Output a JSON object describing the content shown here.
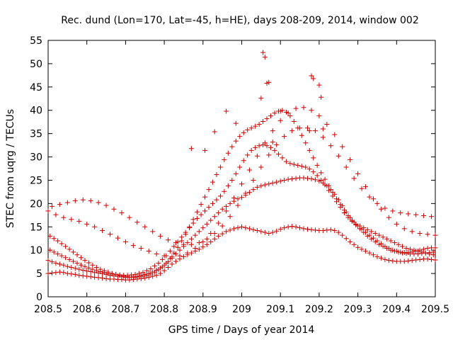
{
  "chart_data": {
    "type": "scatter",
    "title": "Rec. dund (Lon=170, Lat=-45, h=HE), days 208-209, 2014, window 002",
    "xlabel": "GPS time / Days of year 2014",
    "ylabel": "STEC from uqrg / TECUs",
    "xlim": [
      208.5,
      209.5
    ],
    "ylim": [
      0,
      55
    ],
    "xticks": [
      208.5,
      208.6,
      208.7,
      208.8,
      208.9,
      209,
      209.1,
      209.2,
      209.3,
      209.4,
      209.5
    ],
    "xtick_labels": [
      "208.5",
      "208.6",
      "208.7",
      "208.8",
      "208.9",
      "209",
      "209.1",
      "209.2",
      "209.3",
      "209.4",
      "209.5"
    ],
    "yticks": [
      0,
      5,
      10,
      15,
      20,
      25,
      30,
      35,
      40,
      45,
      50,
      55
    ],
    "ytick_labels": [
      "0",
      "5",
      "10",
      "15",
      "20",
      "25",
      "30",
      "35",
      "40",
      "45",
      "50",
      "55"
    ],
    "grid": false,
    "marker": "+",
    "series": [
      {
        "name": "STEC",
        "color": "#cc0000",
        "x": [
          208.5,
          208.51,
          208.52,
          208.53,
          208.54,
          208.55,
          208.56,
          208.57,
          208.58,
          208.59,
          208.6,
          208.61,
          208.62,
          208.63,
          208.64,
          208.65,
          208.66,
          208.67,
          208.68,
          208.69,
          208.7,
          208.71,
          208.72,
          208.73,
          208.74,
          208.75,
          208.76,
          208.77,
          208.78,
          208.79,
          208.8,
          208.81,
          208.82,
          208.83,
          208.84,
          208.85,
          208.86,
          208.87,
          208.88,
          208.89,
          208.9,
          208.91,
          208.92,
          208.93,
          208.94,
          208.95,
          208.96,
          208.97,
          208.98,
          208.99,
          209.0,
          209.01,
          209.02,
          209.03,
          209.04,
          209.05,
          209.06,
          209.07,
          209.08,
          209.09,
          209.1,
          209.11,
          209.12,
          209.13,
          209.14,
          209.15,
          209.16,
          209.17,
          209.18,
          209.19,
          209.2,
          209.21,
          209.22,
          209.23,
          209.24,
          209.25,
          209.26,
          209.27,
          209.28,
          209.29,
          209.3,
          209.31,
          209.32,
          209.33,
          209.34,
          209.35,
          209.36,
          209.37,
          209.38,
          209.39,
          209.4,
          209.41,
          209.42,
          209.43,
          209.44,
          209.45,
          209.46,
          209.47,
          209.48,
          209.49,
          209.5,
          208.5,
          208.51,
          208.52,
          208.53,
          208.54,
          208.55,
          208.56,
          208.57,
          208.58,
          208.59,
          208.6,
          208.61,
          208.62,
          208.63,
          208.64,
          208.65,
          208.66,
          208.67,
          208.68,
          208.69,
          208.7,
          208.71,
          208.72,
          208.73,
          208.74,
          208.75,
          208.76,
          208.77,
          208.78,
          208.79,
          208.8,
          208.81,
          208.82,
          208.83,
          208.84,
          208.85,
          208.86,
          208.87,
          208.88,
          208.89,
          208.9,
          208.91,
          208.92,
          208.93,
          208.94,
          208.95,
          208.96,
          208.97,
          208.98,
          208.99,
          209.0,
          209.01,
          209.02,
          209.03,
          209.04,
          209.05,
          209.06,
          209.07,
          209.08,
          209.09,
          209.1,
          209.11,
          209.12,
          209.13,
          209.14,
          209.15,
          209.16,
          209.17,
          209.18,
          209.19,
          209.2,
          209.21,
          209.22,
          209.23,
          209.24,
          209.25,
          209.26,
          209.27,
          209.28,
          209.29,
          209.3,
          209.31,
          209.32,
          209.33,
          209.34,
          209.35,
          209.36,
          209.37,
          209.38,
          209.39,
          209.4,
          209.41,
          209.42,
          209.43,
          209.44,
          209.45,
          209.46,
          209.47,
          209.48,
          209.49,
          209.5,
          208.505,
          208.515,
          208.525,
          208.535,
          208.545,
          208.555,
          208.565,
          208.575,
          208.585,
          208.595,
          208.605,
          208.615,
          208.625,
          208.635,
          208.645,
          208.655,
          208.665,
          208.675,
          208.685,
          208.695,
          208.705,
          208.715,
          208.725,
          208.735,
          208.745,
          208.755,
          208.765,
          208.775,
          208.785,
          208.795,
          208.805,
          208.815,
          208.825,
          208.835,
          208.845,
          208.855,
          208.865,
          208.875,
          208.885,
          208.895,
          208.905,
          208.915,
          208.925,
          208.935,
          208.945,
          208.955,
          208.965,
          208.975,
          208.985,
          208.995,
          209.005,
          209.015,
          209.025,
          209.035,
          209.045,
          209.055,
          209.065,
          209.075,
          209.085,
          209.095,
          209.105,
          209.115,
          209.125,
          209.135,
          209.145,
          209.155,
          209.165,
          209.175,
          209.185,
          209.195,
          209.205,
          209.215,
          209.225,
          209.235,
          209.245,
          209.255,
          209.265,
          209.275,
          209.285,
          209.295,
          209.305,
          209.315,
          209.325,
          209.335,
          209.345,
          209.355,
          209.365,
          209.375,
          209.385,
          209.395,
          209.405,
          209.415,
          209.425,
          209.435,
          209.445,
          209.455,
          209.465,
          209.475,
          209.485,
          209.495,
          208.505,
          208.515,
          208.525,
          208.535,
          208.545,
          208.555,
          208.565,
          208.575,
          208.585,
          208.595,
          208.605,
          208.615,
          208.625,
          208.635,
          208.645,
          208.655,
          208.665,
          208.675,
          208.685,
          208.695,
          208.705,
          208.715,
          208.725,
          208.735,
          208.745,
          208.755,
          208.765,
          208.775,
          208.785,
          208.795,
          208.805,
          208.815,
          208.825,
          208.835,
          208.845,
          208.855,
          208.865,
          208.875,
          208.885,
          208.895,
          208.905,
          208.915,
          208.925,
          208.935,
          208.945,
          208.955,
          208.965,
          208.975,
          208.985,
          208.995,
          209.005,
          209.015,
          209.025,
          209.035,
          209.045,
          209.055,
          209.065,
          209.075,
          209.085,
          209.095,
          209.105,
          209.115,
          209.125,
          209.135,
          209.145,
          209.155,
          209.165,
          209.175,
          209.185,
          209.195,
          209.205,
          209.215,
          209.225,
          209.235,
          209.245,
          209.255,
          209.265,
          209.275,
          209.285,
          209.295,
          209.305,
          209.315,
          209.325,
          209.335,
          209.345,
          209.355,
          209.365,
          209.375,
          209.385,
          209.395,
          209.405,
          209.415,
          209.425,
          209.435,
          209.445,
          209.455,
          209.465,
          209.475,
          209.485,
          209.495,
          208.5,
          208.52,
          208.54,
          208.56,
          208.58,
          208.6,
          208.62,
          208.64,
          208.66,
          208.68,
          208.7,
          208.72,
          208.74,
          208.76,
          208.78,
          208.8,
          208.82,
          208.84,
          208.86,
          208.88,
          208.9,
          208.92,
          208.94,
          208.96,
          208.98,
          209.0,
          209.02,
          209.04,
          209.06,
          209.08,
          209.1,
          209.12,
          209.14,
          209.16,
          209.18,
          209.2,
          209.22,
          209.24,
          209.26,
          209.28,
          209.3,
          209.32,
          209.34,
          209.36,
          209.38,
          209.4,
          209.42,
          209.44,
          209.46,
          209.48,
          209.5,
          208.51,
          208.53,
          208.55,
          208.57,
          208.59,
          208.61,
          208.63,
          208.65,
          208.67,
          208.69,
          208.71,
          208.73,
          208.75,
          208.77,
          208.79,
          208.81,
          208.83,
          208.85,
          208.87,
          208.89,
          208.91,
          208.93,
          208.95,
          208.97,
          208.99,
          209.01,
          209.03,
          209.05,
          209.07,
          209.09,
          209.11,
          209.13,
          209.15,
          209.17,
          209.19,
          209.21,
          209.23,
          209.25,
          209.27,
          209.29,
          209.31,
          209.33,
          209.35,
          209.37,
          209.39,
          209.41,
          209.43,
          209.45,
          209.47,
          209.49,
          209.055,
          209.06,
          209.065,
          209.05,
          209.07,
          209.1,
          209.18,
          209.185,
          209.2,
          209.205,
          208.96,
          208.985,
          208.93,
          209.08,
          209.175,
          209.21,
          208.87,
          208.905
        ],
        "y": [
          5.0,
          5.1,
          5.2,
          5.3,
          5.2,
          5.0,
          4.9,
          4.8,
          4.6,
          4.5,
          4.4,
          4.3,
          4.2,
          4.1,
          4.0,
          3.9,
          3.8,
          3.8,
          3.7,
          3.7,
          3.6,
          3.6,
          3.7,
          3.8,
          3.9,
          4.0,
          4.2,
          4.4,
          4.6,
          5.0,
          5.6,
          6.3,
          7.0,
          7.6,
          8.1,
          8.6,
          9.0,
          9.4,
          9.8,
          10.2,
          10.7,
          11.2,
          11.8,
          12.4,
          13.0,
          13.5,
          14.0,
          14.3,
          14.6,
          14.8,
          15.0,
          14.8,
          14.6,
          14.4,
          14.2,
          14.0,
          13.8,
          13.6,
          13.8,
          14.1,
          14.5,
          14.8,
          15.0,
          15.1,
          15.0,
          14.8,
          14.6,
          14.5,
          14.4,
          14.3,
          14.2,
          14.2,
          14.3,
          14.4,
          14.2,
          13.8,
          13.2,
          12.5,
          11.8,
          11.2,
          10.6,
          10.2,
          9.8,
          9.4,
          9.0,
          8.6,
          8.3,
          8.0,
          7.8,
          7.7,
          7.6,
          7.6,
          7.6,
          7.7,
          7.8,
          7.9,
          8.0,
          8.1,
          8.1,
          8.0,
          7.9,
          7.8,
          7.5,
          7.2,
          7.0,
          6.8,
          6.5,
          6.3,
          6.1,
          5.9,
          5.7,
          5.5,
          5.4,
          5.2,
          5.1,
          5.0,
          4.8,
          4.6,
          4.5,
          4.4,
          4.3,
          4.2,
          4.2,
          4.3,
          4.4,
          4.6,
          4.8,
          5.0,
          5.3,
          5.7,
          6.2,
          6.8,
          7.5,
          8.3,
          9.2,
          10.0,
          10.8,
          11.6,
          12.4,
          13.2,
          14.0,
          14.8,
          15.6,
          16.4,
          17.2,
          18.0,
          18.8,
          19.4,
          20.0,
          20.5,
          21.0,
          21.3,
          21.8,
          22.4,
          23.0,
          23.5,
          23.8,
          24.0,
          24.2,
          24.4,
          24.6,
          24.8,
          25.0,
          25.2,
          25.3,
          25.4,
          25.5,
          25.5,
          25.4,
          25.3,
          25.1,
          24.8,
          24.4,
          23.8,
          23.0,
          22.0,
          20.8,
          19.5,
          18.2,
          17.0,
          16.0,
          15.2,
          14.5,
          13.8,
          13.2,
          12.6,
          12.0,
          11.4,
          10.8,
          10.4,
          10.0,
          9.8,
          9.6,
          9.5,
          9.5,
          9.6,
          9.8,
          10.0,
          10.2,
          10.4,
          10.5,
          10.5,
          10.0,
          9.6,
          9.2,
          8.8,
          8.4,
          8.0,
          7.6,
          7.2,
          6.8,
          6.5,
          6.2,
          5.9,
          5.6,
          5.4,
          5.2,
          5.0,
          4.9,
          4.8,
          4.7,
          4.6,
          4.6,
          4.7,
          4.8,
          5.0,
          5.2,
          5.6,
          6.0,
          6.6,
          7.2,
          8.0,
          8.8,
          9.8,
          10.8,
          11.8,
          12.8,
          13.8,
          14.8,
          15.8,
          16.8,
          17.6,
          18.4,
          19.2,
          20.0,
          20.8,
          21.6,
          22.6,
          23.8,
          25.0,
          26.4,
          27.8,
          29.2,
          30.4,
          31.4,
          32.0,
          32.4,
          32.6,
          32.4,
          32.0,
          31.4,
          30.6,
          29.8,
          29.0,
          28.6,
          28.4,
          28.2,
          28.0,
          27.8,
          27.4,
          26.8,
          26.0,
          25.0,
          24.0,
          22.8,
          21.6,
          20.4,
          19.2,
          18.0,
          17.0,
          16.2,
          15.6,
          15.2,
          14.8,
          14.4,
          14.0,
          13.6,
          13.2,
          12.8,
          12.4,
          12.0,
          11.6,
          11.2,
          10.8,
          10.4,
          10.2,
          10.0,
          9.8,
          9.6,
          9.4,
          9.2,
          9.0,
          13.0,
          12.5,
          12.0,
          11.4,
          10.8,
          10.2,
          9.6,
          9.0,
          8.4,
          7.8,
          7.3,
          6.8,
          6.3,
          5.9,
          5.6,
          5.3,
          5.0,
          4.8,
          4.6,
          4.4,
          4.3,
          4.2,
          4.2,
          4.3,
          4.4,
          4.6,
          4.9,
          5.3,
          5.8,
          6.4,
          7.2,
          8.2,
          9.4,
          10.6,
          12.0,
          13.4,
          15.0,
          16.6,
          18.2,
          19.8,
          21.4,
          23.0,
          24.6,
          26.2,
          27.8,
          29.4,
          30.8,
          32.2,
          33.4,
          34.4,
          35.2,
          35.8,
          36.2,
          36.6,
          37.0,
          37.6,
          38.2,
          38.8,
          39.4,
          39.8,
          40.0,
          39.6,
          38.8,
          37.6,
          36.2,
          34.6,
          33.0,
          31.4,
          29.8,
          28.2,
          26.6,
          25.2,
          23.8,
          22.4,
          21.0,
          19.8,
          18.6,
          17.4,
          16.4,
          15.4,
          14.6,
          13.8,
          13.0,
          12.4,
          11.8,
          11.2,
          10.8,
          10.4,
          10.0,
          9.8,
          9.6,
          9.4,
          9.3,
          9.2,
          9.2,
          9.2,
          9.3,
          9.4,
          9.5,
          9.6,
          18.4,
          17.6,
          17.0,
          16.6,
          16.2,
          15.6,
          15.0,
          14.2,
          13.4,
          12.6,
          11.8,
          11.0,
          10.4,
          9.8,
          9.2,
          8.8,
          8.6,
          8.8,
          9.4,
          10.4,
          11.8,
          13.6,
          15.8,
          18.4,
          21.2,
          24.2,
          27.2,
          30.2,
          33.0,
          35.6,
          37.8,
          39.4,
          40.4,
          40.6,
          40.0,
          38.8,
          37.0,
          34.8,
          32.2,
          29.4,
          26.4,
          23.6,
          21.0,
          18.8,
          17.0,
          15.6,
          14.6,
          14.0,
          13.6,
          13.4,
          13.2,
          19.4,
          19.8,
          20.2,
          20.6,
          20.8,
          20.6,
          20.2,
          19.6,
          18.8,
          18.0,
          17.0,
          16.0,
          15.0,
          14.0,
          13.0,
          12.2,
          11.6,
          11.2,
          11.2,
          11.6,
          12.4,
          13.6,
          15.2,
          17.2,
          19.6,
          22.2,
          25.0,
          27.8,
          30.4,
          32.6,
          34.4,
          35.6,
          36.2,
          36.2,
          35.6,
          34.2,
          32.4,
          30.2,
          27.8,
          25.4,
          23.2,
          21.4,
          20.0,
          19.0,
          18.4,
          18.0,
          17.8,
          17.6,
          17.4,
          17.2,
          52.4,
          51.4,
          45.8,
          42.6,
          46.0,
          39.8,
          47.4,
          46.8,
          45.4,
          42.8,
          39.8,
          37.2,
          35.4,
          33.2,
          35.6,
          36.0,
          31.8,
          31.4
        ]
      }
    ]
  }
}
